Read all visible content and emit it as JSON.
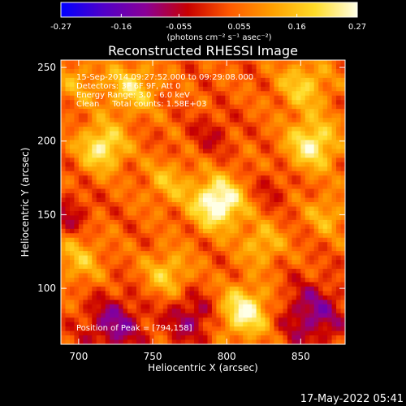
{
  "chart_data": {
    "type": "heatmap",
    "title": "Reconstructed RHESSI Image",
    "xlabel": "Heliocentric X (arcsec)",
    "ylabel": "Heliocentric Y (arcsec)",
    "xlim": [
      688,
      880
    ],
    "ylim": [
      62,
      255
    ],
    "xticks": [
      "700",
      "750",
      "800",
      "850"
    ],
    "xtick_values": [
      700,
      750,
      800,
      850
    ],
    "yticks": [
      "100",
      "150",
      "200",
      "250"
    ],
    "ytick_values": [
      100,
      150,
      200,
      250
    ],
    "colorbar": {
      "unit_label": "(photons cm⁻² s⁻¹ asec⁻²)",
      "range": [
        -0.27,
        0.27
      ],
      "ticks": [
        "-0.27",
        "-0.16",
        "-0.055",
        "0.055",
        "0.16",
        "0.27"
      ],
      "tick_values": [
        -0.27,
        -0.16,
        -0.055,
        0.055,
        0.16,
        0.27
      ],
      "colormap": [
        "#0000ff",
        "#5000c8",
        "#8a0096",
        "#c80000",
        "#ff5a00",
        "#ffa000",
        "#ffdc28",
        "#ffffe6"
      ]
    },
    "annotations": [
      "15-Sep-2014 09:27:52.000 to 09:29:08.000",
      "Detectors: 3F 6F 9F, Att 0",
      "Energy Range: 3.0 - 6.0 keV",
      "Clean     Total counts: 1.58E+03"
    ],
    "peak_label": "Position of Peak = [794,158]",
    "peak": [
      794,
      158
    ],
    "sources": [
      {
        "x": 794,
        "y": 158,
        "value": 0.27,
        "width": 12
      },
      {
        "x": 812,
        "y": 84,
        "value": 0.22,
        "width": 12
      },
      {
        "x": 716,
        "y": 196,
        "value": 0.2,
        "width": 11
      },
      {
        "x": 858,
        "y": 198,
        "value": 0.2,
        "width": 12
      },
      {
        "x": 736,
        "y": 236,
        "value": 0.15,
        "width": 12
      },
      {
        "x": 852,
        "y": 238,
        "value": 0.14,
        "width": 12
      },
      {
        "x": 760,
        "y": 110,
        "value": 0.13,
        "width": 11
      },
      {
        "x": 700,
        "y": 120,
        "value": 0.11,
        "width": 12
      },
      {
        "x": 824,
        "y": 130,
        "value": 0.12,
        "width": 10
      },
      {
        "x": 868,
        "y": 150,
        "value": 0.1,
        "width": 10
      },
      {
        "x": 760,
        "y": 172,
        "value": 0.1,
        "width": 11
      },
      {
        "x": 700,
        "y": 240,
        "value": 0.08,
        "width": 12
      },
      {
        "x": 724,
        "y": 75,
        "value": -0.15,
        "width": 14
      },
      {
        "x": 776,
        "y": 80,
        "value": -0.13,
        "width": 12
      },
      {
        "x": 858,
        "y": 82,
        "value": -0.15,
        "width": 15
      },
      {
        "x": 694,
        "y": 150,
        "value": -0.09,
        "width": 10
      },
      {
        "x": 790,
        "y": 205,
        "value": -0.07,
        "width": 10
      },
      {
        "x": 830,
        "y": 168,
        "value": -0.06,
        "width": 9
      }
    ]
  },
  "timestamp": "17-May-2022 05:41"
}
